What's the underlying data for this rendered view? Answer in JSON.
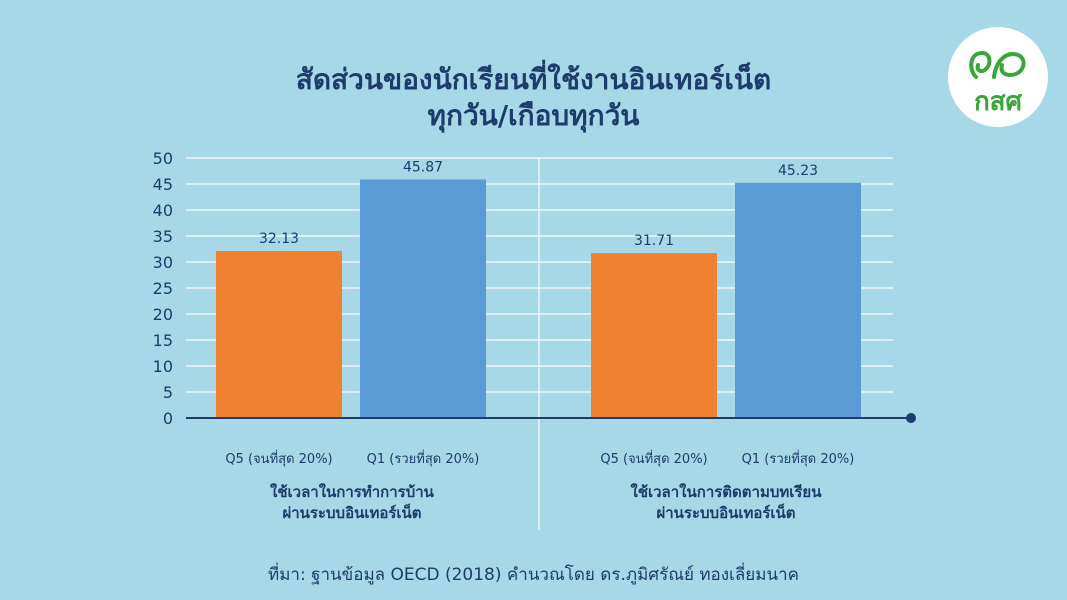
{
  "title": {
    "line1": "สัดส่วนของนักเรียนที่ใช้งานอินเทอร์เน็ต",
    "line2": "ทุกวัน/เกือบทุกวัน"
  },
  "logo": {
    "text": "กสศ",
    "icon": "eef-logo-icon",
    "color": "#3aa639"
  },
  "source": "ที่มา: ฐานข้อมูล OECD (2018) คำนวณโดย ดร.ภูมิศรัณย์ ทองเลี่ยมนาค",
  "chart_data": {
    "type": "bar",
    "ylim": [
      0,
      50
    ],
    "yticks": [
      "0",
      "5",
      "10",
      "15",
      "20",
      "25",
      "30",
      "35",
      "40",
      "45",
      "50"
    ],
    "grid": true,
    "groups": [
      {
        "label_line1": "ใช้เวลาในการทำการบ้าน",
        "label_line2": "ผ่านระบบอินเทอร์เน็ต",
        "bars": [
          {
            "category": "Q5 (จนที่สุด 20%)",
            "value": 32.13,
            "value_label": "32.13",
            "color": "#ef8230"
          },
          {
            "category": "Q1 (รวยที่สุด 20%)",
            "value": 45.87,
            "value_label": "45.87",
            "color": "#5b9bd5"
          }
        ]
      },
      {
        "label_line1": "ใช้เวลาในการติดตามบทเรียน",
        "label_line2": "ผ่านระบบอินเทอร์เน็ต",
        "bars": [
          {
            "category": "Q5 (จนที่สุด 20%)",
            "value": 31.71,
            "value_label": "31.71",
            "color": "#ef8230"
          },
          {
            "category": "Q1 (รวยที่สุด 20%)",
            "value": 45.23,
            "value_label": "45.23",
            "color": "#5b9bd5"
          }
        ]
      }
    ]
  }
}
